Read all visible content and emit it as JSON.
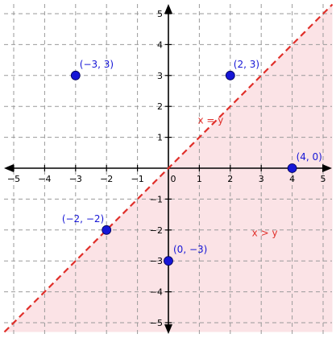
{
  "chart_data": {
    "type": "scatter",
    "title": "",
    "xlabel": "",
    "ylabel": "",
    "xlim": [
      -5.3,
      5.3
    ],
    "ylim": [
      -5.3,
      5.3
    ],
    "x_ticks": [
      -5,
      -4,
      -3,
      -2,
      -1,
      0,
      1,
      2,
      3,
      4,
      5
    ],
    "y_ticks": [
      -5,
      -4,
      -3,
      -2,
      -1,
      1,
      2,
      3,
      4,
      5
    ],
    "x_tick_labels": [
      "−5",
      "−4",
      "−3",
      "−2",
      "−1",
      "0",
      "1",
      "2",
      "3",
      "4",
      "5"
    ],
    "y_tick_labels": [
      "−5",
      "−4",
      "−3",
      "−2",
      "−1",
      "1",
      "2",
      "3",
      "4",
      "5"
    ],
    "grid": true,
    "points": [
      {
        "x": -3,
        "y": 3,
        "label": "(−3, 3)"
      },
      {
        "x": 2,
        "y": 3,
        "label": "(2, 3)"
      },
      {
        "x": 4,
        "y": 0,
        "label": "(4, 0)"
      },
      {
        "x": -2,
        "y": -2,
        "label": "(−2, −2)"
      },
      {
        "x": 0,
        "y": -3,
        "label": "(0, −3)"
      }
    ],
    "boundary_line": {
      "label": "x = y",
      "style": "dashed",
      "color": "#e0302b"
    },
    "shaded_region": {
      "label": "x > y",
      "color": "#fbe3e6"
    },
    "annotations": [
      {
        "text": "x = y",
        "x": 0.95,
        "y": 1.45
      },
      {
        "text": "x > y",
        "x": 2.7,
        "y": -2.2
      }
    ],
    "colors": {
      "points": "#1616d6",
      "point_labels": "#1616d6",
      "line": "#e0302b",
      "region_labels": "#e0302b",
      "grid": "#9a9a9a",
      "axis": "#000000"
    }
  }
}
